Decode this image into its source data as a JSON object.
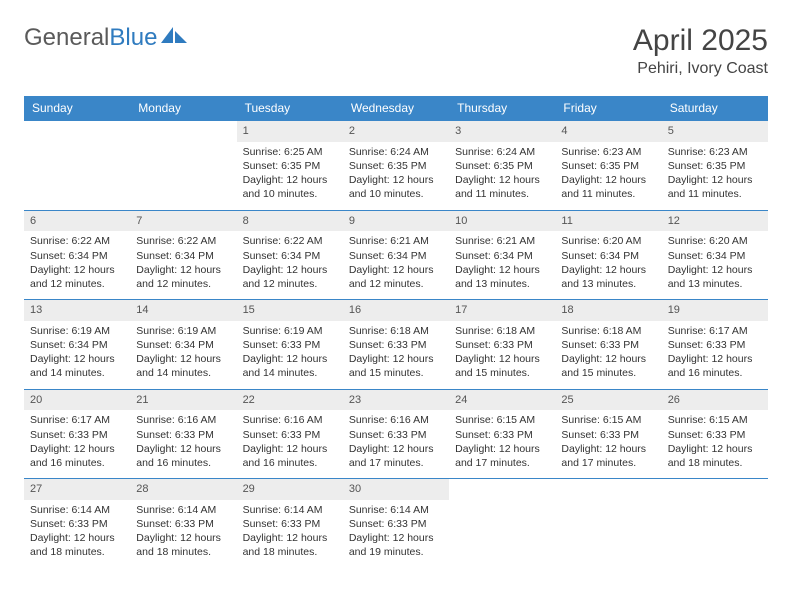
{
  "brand": {
    "part1": "General",
    "part2": "Blue"
  },
  "title": "April 2025",
  "location": "Pehiri, Ivory Coast",
  "colors": {
    "header_bg": "#3a86c8",
    "header_text": "#ffffff",
    "daynum_bg": "#ededed",
    "row_border": "#3a86c8",
    "brand_gray": "#5a5a5a",
    "brand_blue": "#2f7bbf"
  },
  "weekdays": [
    "Sunday",
    "Monday",
    "Tuesday",
    "Wednesday",
    "Thursday",
    "Friday",
    "Saturday"
  ],
  "labels": {
    "sunrise": "Sunrise:",
    "sunset": "Sunset:",
    "daylight": "Daylight:"
  },
  "weeks": [
    [
      null,
      null,
      {
        "n": "1",
        "sr": "6:25 AM",
        "ss": "6:35 PM",
        "dl": "12 hours and 10 minutes."
      },
      {
        "n": "2",
        "sr": "6:24 AM",
        "ss": "6:35 PM",
        "dl": "12 hours and 10 minutes."
      },
      {
        "n": "3",
        "sr": "6:24 AM",
        "ss": "6:35 PM",
        "dl": "12 hours and 11 minutes."
      },
      {
        "n": "4",
        "sr": "6:23 AM",
        "ss": "6:35 PM",
        "dl": "12 hours and 11 minutes."
      },
      {
        "n": "5",
        "sr": "6:23 AM",
        "ss": "6:35 PM",
        "dl": "12 hours and 11 minutes."
      }
    ],
    [
      {
        "n": "6",
        "sr": "6:22 AM",
        "ss": "6:34 PM",
        "dl": "12 hours and 12 minutes."
      },
      {
        "n": "7",
        "sr": "6:22 AM",
        "ss": "6:34 PM",
        "dl": "12 hours and 12 minutes."
      },
      {
        "n": "8",
        "sr": "6:22 AM",
        "ss": "6:34 PM",
        "dl": "12 hours and 12 minutes."
      },
      {
        "n": "9",
        "sr": "6:21 AM",
        "ss": "6:34 PM",
        "dl": "12 hours and 12 minutes."
      },
      {
        "n": "10",
        "sr": "6:21 AM",
        "ss": "6:34 PM",
        "dl": "12 hours and 13 minutes."
      },
      {
        "n": "11",
        "sr": "6:20 AM",
        "ss": "6:34 PM",
        "dl": "12 hours and 13 minutes."
      },
      {
        "n": "12",
        "sr": "6:20 AM",
        "ss": "6:34 PM",
        "dl": "12 hours and 13 minutes."
      }
    ],
    [
      {
        "n": "13",
        "sr": "6:19 AM",
        "ss": "6:34 PM",
        "dl": "12 hours and 14 minutes."
      },
      {
        "n": "14",
        "sr": "6:19 AM",
        "ss": "6:34 PM",
        "dl": "12 hours and 14 minutes."
      },
      {
        "n": "15",
        "sr": "6:19 AM",
        "ss": "6:33 PM",
        "dl": "12 hours and 14 minutes."
      },
      {
        "n": "16",
        "sr": "6:18 AM",
        "ss": "6:33 PM",
        "dl": "12 hours and 15 minutes."
      },
      {
        "n": "17",
        "sr": "6:18 AM",
        "ss": "6:33 PM",
        "dl": "12 hours and 15 minutes."
      },
      {
        "n": "18",
        "sr": "6:18 AM",
        "ss": "6:33 PM",
        "dl": "12 hours and 15 minutes."
      },
      {
        "n": "19",
        "sr": "6:17 AM",
        "ss": "6:33 PM",
        "dl": "12 hours and 16 minutes."
      }
    ],
    [
      {
        "n": "20",
        "sr": "6:17 AM",
        "ss": "6:33 PM",
        "dl": "12 hours and 16 minutes."
      },
      {
        "n": "21",
        "sr": "6:16 AM",
        "ss": "6:33 PM",
        "dl": "12 hours and 16 minutes."
      },
      {
        "n": "22",
        "sr": "6:16 AM",
        "ss": "6:33 PM",
        "dl": "12 hours and 16 minutes."
      },
      {
        "n": "23",
        "sr": "6:16 AM",
        "ss": "6:33 PM",
        "dl": "12 hours and 17 minutes."
      },
      {
        "n": "24",
        "sr": "6:15 AM",
        "ss": "6:33 PM",
        "dl": "12 hours and 17 minutes."
      },
      {
        "n": "25",
        "sr": "6:15 AM",
        "ss": "6:33 PM",
        "dl": "12 hours and 17 minutes."
      },
      {
        "n": "26",
        "sr": "6:15 AM",
        "ss": "6:33 PM",
        "dl": "12 hours and 18 minutes."
      }
    ],
    [
      {
        "n": "27",
        "sr": "6:14 AM",
        "ss": "6:33 PM",
        "dl": "12 hours and 18 minutes."
      },
      {
        "n": "28",
        "sr": "6:14 AM",
        "ss": "6:33 PM",
        "dl": "12 hours and 18 minutes."
      },
      {
        "n": "29",
        "sr": "6:14 AM",
        "ss": "6:33 PM",
        "dl": "12 hours and 18 minutes."
      },
      {
        "n": "30",
        "sr": "6:14 AM",
        "ss": "6:33 PM",
        "dl": "12 hours and 19 minutes."
      },
      null,
      null,
      null
    ]
  ]
}
